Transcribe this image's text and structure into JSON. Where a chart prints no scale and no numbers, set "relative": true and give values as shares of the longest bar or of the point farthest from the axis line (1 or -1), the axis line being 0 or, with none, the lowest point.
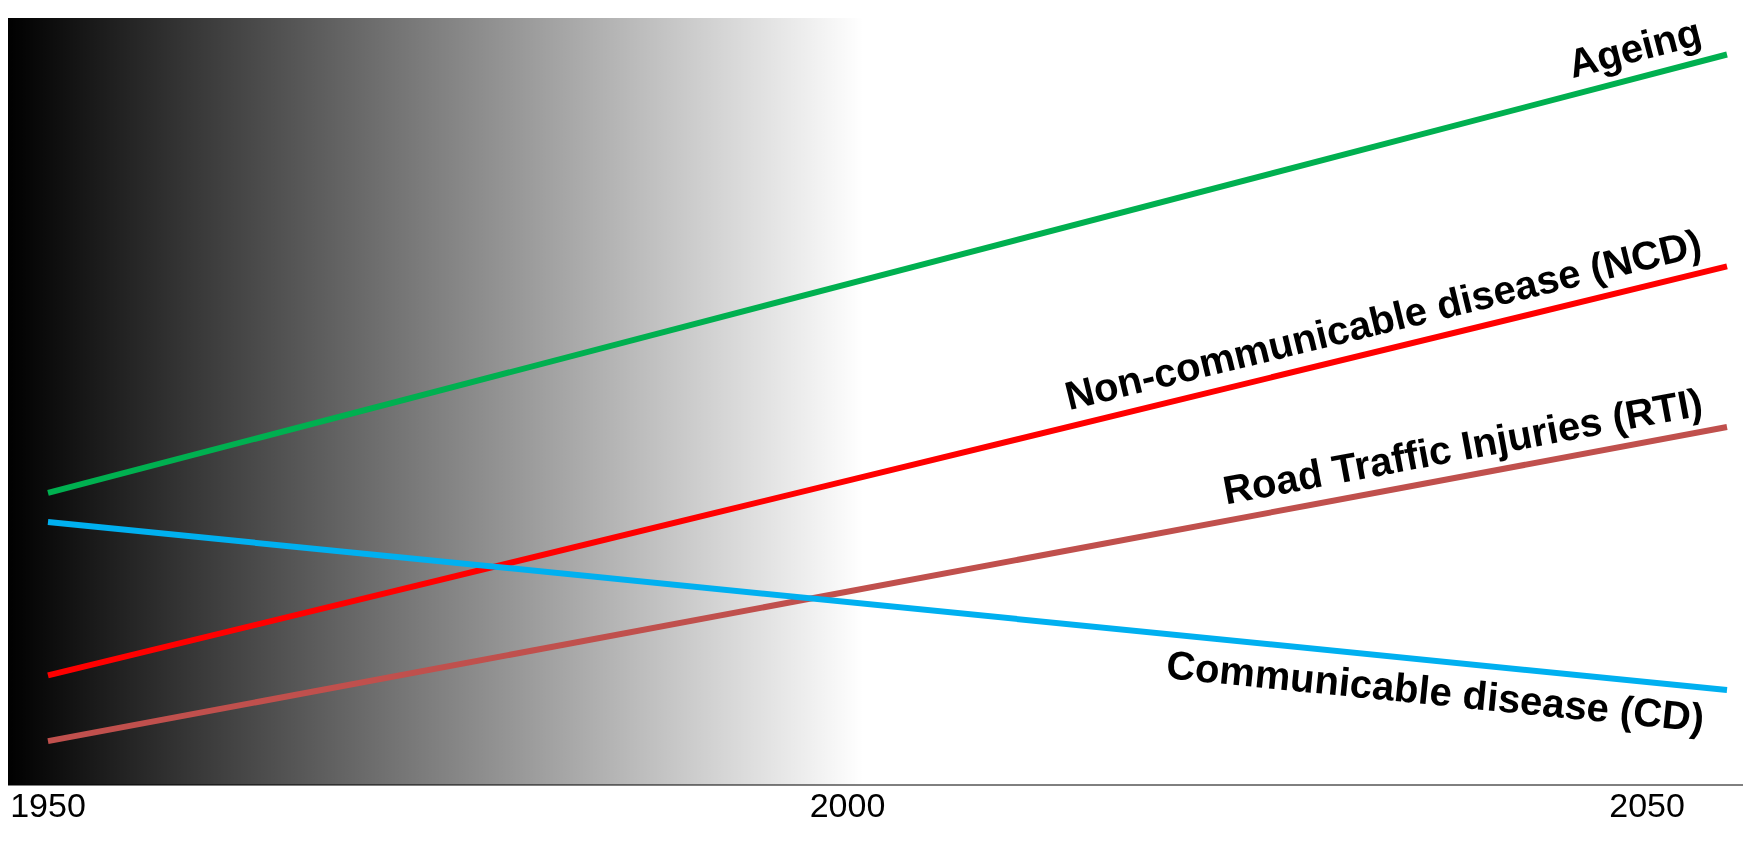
{
  "chart_data": {
    "type": "line",
    "relative": true,
    "x": [
      1950,
      2055
    ],
    "xlim": [
      1947.5,
      2056
    ],
    "xticks": [
      1950,
      2000,
      2050
    ],
    "series": [
      {
        "name": "Ageing",
        "color": "#00b050",
        "values": [
          0.4,
          1
        ]
      },
      {
        "name": "Non-communicable disease (NCD)",
        "color": "#ff0000",
        "values": [
          0.15,
          0.71
        ]
      },
      {
        "name": "Road Traffic Injuries (RTI)",
        "color": "#c0504d",
        "values": [
          0.06,
          0.49
        ]
      },
      {
        "name": "Communicable disease (CD)",
        "color": "#00b0f0",
        "values": [
          0.36,
          0.13
        ]
      }
    ],
    "bands": [
      {
        "axis": "x",
        "from": 1947.5,
        "to": 2001,
        "color": "#000000"
      }
    ],
    "grid": false,
    "legend": false,
    "marker": "none",
    "line_style": "solid"
  }
}
